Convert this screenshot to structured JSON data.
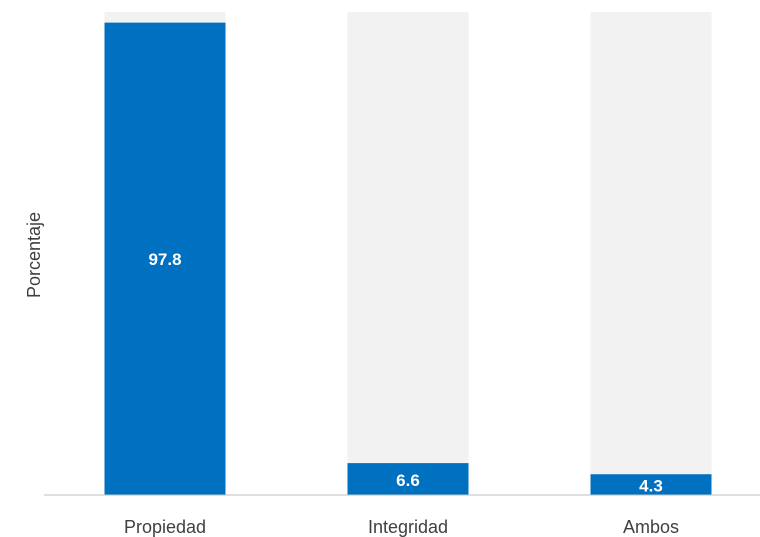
{
  "chart_data": {
    "type": "bar",
    "categories": [
      "Propiedad",
      "Integridad",
      "Ambos"
    ],
    "values": [
      97.8,
      6.6,
      4.3
    ],
    "value_labels": [
      "97.8",
      "6.6",
      "4.3"
    ],
    "title": "",
    "xlabel": "",
    "ylabel": "Porcentaje",
    "ylim": [
      0,
      100
    ],
    "background_bars": true,
    "grid": false,
    "colors": {
      "bar": "#0070c0",
      "bar_background": "#f2f2f2",
      "axis": "#bfbfbf",
      "text": "#404040",
      "data_label": "#ffffff"
    }
  }
}
